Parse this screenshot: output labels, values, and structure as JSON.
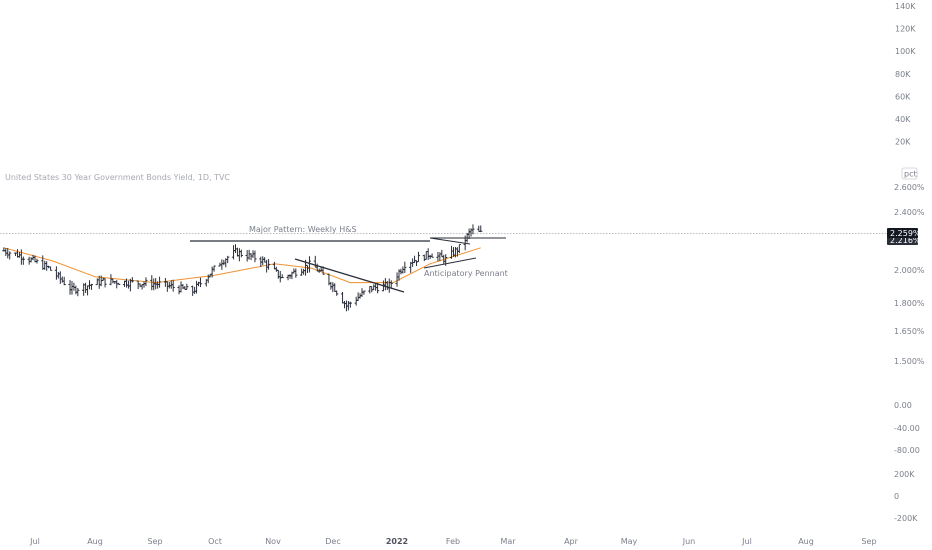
{
  "symbol_title": "United States 30 Year Government Bonds Yield, 1D, TVC",
  "unit_button": "pct",
  "colors": {
    "bars": "#2a2e39",
    "ma_line": "#f0912f",
    "trendline": "#2a2e39",
    "price_line": "#9598a1",
    "badge_current": "#131722",
    "badge_prev": "#2a2e39"
  },
  "price_badge": {
    "current": "2.259%",
    "previous": "2.216%"
  },
  "annotations": {
    "major_pattern": "Major Pattern: Weekly H&S",
    "pennant": "Anticipatory Pennant"
  },
  "volume_axis_ticks": [
    "140K",
    "120K",
    "100K",
    "80K",
    "60K",
    "40K",
    "20K"
  ],
  "price_axis_ticks": [
    "2.600%",
    "2.400%",
    "2.000%",
    "1.800%",
    "1.650%",
    "1.500%"
  ],
  "lower_axis_ticks": [
    "0.00",
    "-40.00",
    "-80.00",
    "200K",
    "0",
    "-200K"
  ],
  "x_axis_ticks": [
    {
      "label": "Jul",
      "bold": false
    },
    {
      "label": "Aug",
      "bold": false
    },
    {
      "label": "Sep",
      "bold": false
    },
    {
      "label": "Oct",
      "bold": false
    },
    {
      "label": "Nov",
      "bold": false
    },
    {
      "label": "Dec",
      "bold": false
    },
    {
      "label": "2022",
      "bold": true
    },
    {
      "label": "Feb",
      "bold": false
    },
    {
      "label": "Mar",
      "bold": false
    },
    {
      "label": "Apr",
      "bold": false
    },
    {
      "label": "May",
      "bold": false
    },
    {
      "label": "Jun",
      "bold": false
    },
    {
      "label": "Jul",
      "bold": false
    },
    {
      "label": "Aug",
      "bold": false
    },
    {
      "label": "Sep",
      "bold": false
    }
  ],
  "chart_data": {
    "type": "bar",
    "title": "United States 30 Year Government Bonds Yield, 1D, TVC",
    "unit": "%",
    "ylim": [
      1.5,
      2.6
    ],
    "legend": "none",
    "x_start": "2021-06-15",
    "x_end": "2022-02-15",
    "anchors_x": [
      "2021-06-15",
      "2021-06-25",
      "2021-07-08",
      "2021-07-20",
      "2021-08-05",
      "2021-08-20",
      "2021-09-03",
      "2021-09-20",
      "2021-10-05",
      "2021-10-12",
      "2021-10-25",
      "2021-11-05",
      "2021-11-20",
      "2021-12-01",
      "2021-12-08",
      "2021-12-20",
      "2021-12-30",
      "2022-01-07",
      "2022-01-20",
      "2022-01-28",
      "2022-02-04",
      "2022-02-10",
      "2022-02-15"
    ],
    "anchors_close": [
      2.14,
      2.1,
      2.02,
      1.87,
      1.93,
      1.92,
      1.91,
      1.86,
      2.07,
      2.13,
      2.08,
      1.95,
      2.05,
      1.9,
      1.76,
      1.88,
      1.9,
      2.05,
      2.12,
      2.08,
      2.16,
      2.28,
      2.26
    ],
    "moving_average": {
      "x": [
        "2021-06-15",
        "2021-07-10",
        "2021-08-01",
        "2021-09-01",
        "2021-10-01",
        "2021-11-01",
        "2021-11-20",
        "2021-12-10",
        "2022-01-01",
        "2022-01-20",
        "2022-02-15"
      ],
      "y": [
        2.16,
        2.07,
        1.96,
        1.92,
        1.97,
        2.05,
        2.02,
        1.92,
        1.92,
        2.05,
        2.16
      ]
    },
    "current_value": 2.259,
    "previous_close": 2.216
  }
}
